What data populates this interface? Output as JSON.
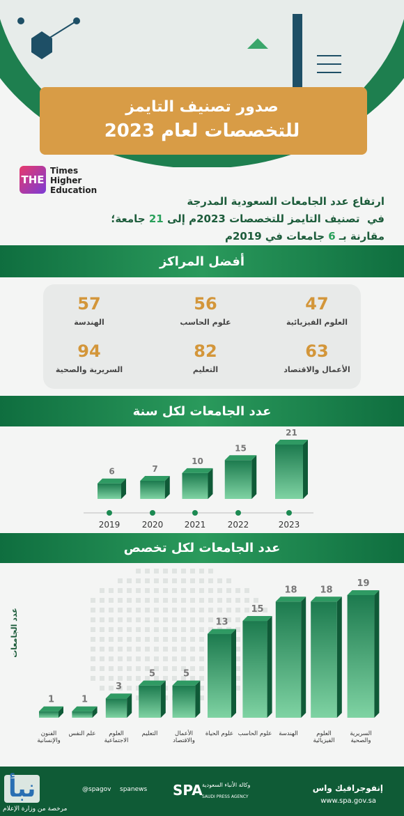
{
  "header": {
    "title_lines": [
      "صدور تصنيف التايمز",
      "للتخصصات لعام 2023"
    ]
  },
  "logo": {
    "mark": "THE",
    "lines": [
      "Times",
      "Higher",
      "Education"
    ]
  },
  "intro": {
    "lines": [
      [
        "ارتفاع عدد الجامعات السعودية المدرجة"
      ],
      [
        "في  تصنيف التايمز للتخصصات 2023م إلى ",
        "21",
        " جامعة؛"
      ],
      [
        "مقارنة بـ ",
        "6",
        " جامعات في 2019م"
      ]
    ]
  },
  "ranks": {
    "title": "أفضل المراكز",
    "items": [
      {
        "rank": 47,
        "label": "العلوم الفيزيائية"
      },
      {
        "rank": 56,
        "label": "علوم الحاسب"
      },
      {
        "rank": 57,
        "label": "الهندسة"
      },
      {
        "rank": 63,
        "label": "الأعمال والاقتصاد"
      },
      {
        "rank": 82,
        "label": "التعليم"
      },
      {
        "rank": 94,
        "label": "السريرية والصحية"
      }
    ]
  },
  "chart_data": [
    {
      "type": "bar",
      "title": "عدد الجامعات  لكل سنة",
      "color": "#1c7a4e",
      "categories": [
        "2019",
        "2020",
        "2021",
        "2022",
        "2023"
      ],
      "values": [
        6,
        7,
        10,
        15,
        21
      ]
    },
    {
      "type": "bar",
      "title": "عدد الجامعات  لكل تخصص",
      "y_label": "عدد الجامعات",
      "color": "#1c7a4e",
      "categories": [
        "الفنون والإنسانية",
        "علم النفس",
        "العلوم الاجتماعية",
        "التعليم",
        "الأعمال والاقتصاد",
        "علوم الحياة",
        "علوم الحاسب",
        "الهندسة",
        "العلوم الفيزيائية",
        "السريرية والصحية"
      ],
      "values": [
        1,
        1,
        3,
        5,
        5,
        13,
        15,
        18,
        18,
        19
      ]
    }
  ],
  "footer": {
    "handles": [
      "@spagov",
      "spanews"
    ],
    "agency_ar": "وكالة الأنباء السعودية",
    "agency_en": "SAUDI PRESS AGENCY",
    "agency_mark": "SPA",
    "site": "www.spa.gov.sa",
    "infographic": "إنفوجرافيك واس",
    "watermark": "نبأ",
    "license": "مرخصة من وزارة الإعلام"
  }
}
